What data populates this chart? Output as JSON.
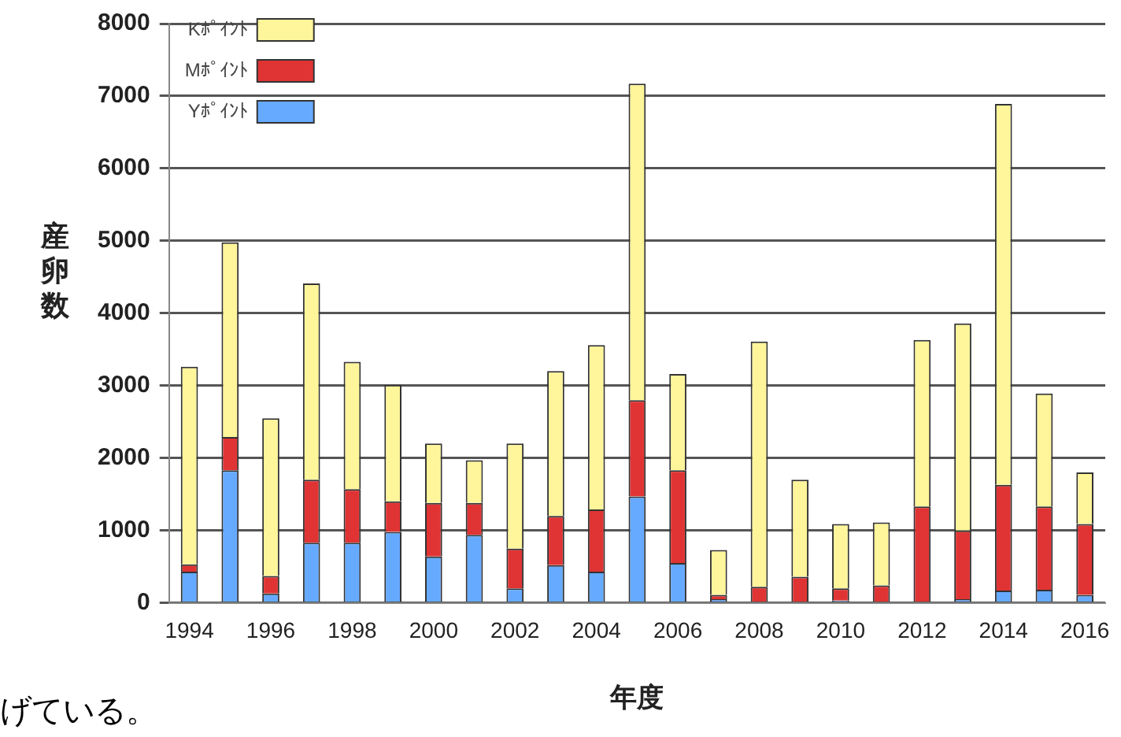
{
  "chart_data": {
    "type": "bar",
    "stacked": true,
    "xlabel": "年度",
    "ylabel": "産卵数",
    "annotations": [
      "げている。"
    ],
    "categories": [
      "1994",
      null,
      "1996",
      null,
      "1998",
      null,
      "2000",
      null,
      "2002",
      null,
      "2004",
      null,
      "2006",
      null,
      "2008",
      null,
      "2010",
      null,
      "2012",
      null,
      "2014",
      null,
      "2016"
    ],
    "series": [
      {
        "name": "Yﾎﾟｲﾝﾄ",
        "color": "#66aaff",
        "values": [
          430,
          1830,
          130,
          830,
          830,
          980,
          640,
          940,
          200,
          520,
          430,
          1470,
          550,
          50,
          0,
          0,
          30,
          0,
          0,
          50,
          170,
          180,
          110
        ]
      },
      {
        "name": "Mﾎﾟｲﾝﾄ",
        "color": "#e03434",
        "values": [
          100,
          460,
          240,
          870,
          740,
          420,
          740,
          440,
          550,
          680,
          860,
          1330,
          1280,
          60,
          220,
          360,
          170,
          240,
          1330,
          950,
          1460,
          1150,
          980
        ]
      },
      {
        "name": "Kﾎﾟｲﾝﾄ",
        "color": "#fff59a",
        "values": [
          2730,
          2690,
          2180,
          2710,
          1760,
          1610,
          820,
          590,
          1450,
          2000,
          2270,
          4370,
          1330,
          620,
          3390,
          1340,
          890,
          870,
          2300,
          2860,
          5260,
          1560,
          710
        ]
      }
    ],
    "ylim": [
      0,
      8000
    ],
    "yticks": [
      0,
      1000,
      2000,
      3000,
      4000,
      5000,
      6000,
      7000,
      8000
    ],
    "grid": "y",
    "legend": "top left"
  }
}
